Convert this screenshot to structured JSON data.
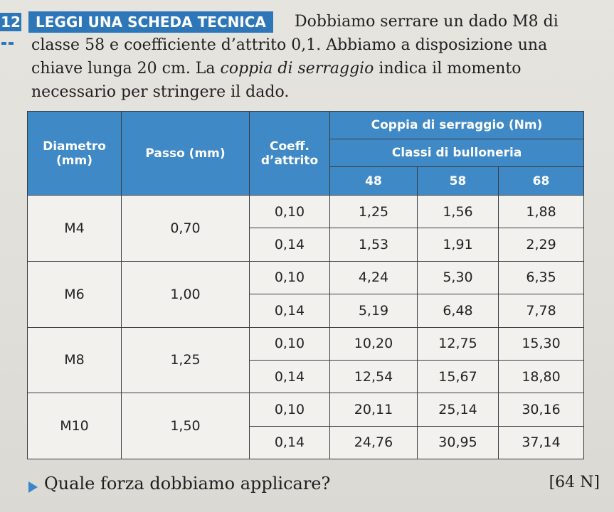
{
  "exercise": {
    "number": "12",
    "tag": "LEGGI UNA SCHEDA TECNICA",
    "intro_before_emphasis": "Dobbiamo serrare un dado M8 di classe 58 e coefficiente d’attrito 0,1. Abbiamo a disposizione una chiave lunga 20 cm. La ",
    "intro_emphasis": "coppia di serraggio",
    "intro_after_emphasis": " indica il momento necessario per stringere il dado."
  },
  "table": {
    "header": {
      "diametro": "Diametro (mm)",
      "passo": "Passo (mm)",
      "coeff": "Coeff. d’attrito",
      "coppia": "Coppia di serraggio (Nm)",
      "classi": "Classi di bulloneria",
      "class_48": "48",
      "class_58": "58",
      "class_68": "68"
    },
    "rows": [
      {
        "diametro": "M4",
        "passo": "0,70",
        "a": {
          "coeff": "0,10",
          "c48": "1,25",
          "c58": "1,56",
          "c68": "1,88"
        },
        "b": {
          "coeff": "0,14",
          "c48": "1,53",
          "c58": "1,91",
          "c68": "2,29"
        }
      },
      {
        "diametro": "M6",
        "passo": "1,00",
        "a": {
          "coeff": "0,10",
          "c48": "4,24",
          "c58": "5,30",
          "c68": "6,35"
        },
        "b": {
          "coeff": "0,14",
          "c48": "5,19",
          "c58": "6,48",
          "c68": "7,78"
        }
      },
      {
        "diametro": "M8",
        "passo": "1,25",
        "a": {
          "coeff": "0,10",
          "c48": "10,20",
          "c58": "12,75",
          "c68": "15,30"
        },
        "b": {
          "coeff": "0,14",
          "c48": "12,54",
          "c58": "15,67",
          "c68": "18,80"
        }
      },
      {
        "diametro": "M10",
        "passo": "1,50",
        "a": {
          "coeff": "0,10",
          "c48": "20,11",
          "c58": "25,14",
          "c68": "30,16"
        },
        "b": {
          "coeff": "0,14",
          "c48": "24,76",
          "c58": "30,95",
          "c68": "37,14"
        }
      }
    ]
  },
  "question": {
    "text": "Quale forza dobbiamo applicare?",
    "answer": "[64 N]"
  }
}
